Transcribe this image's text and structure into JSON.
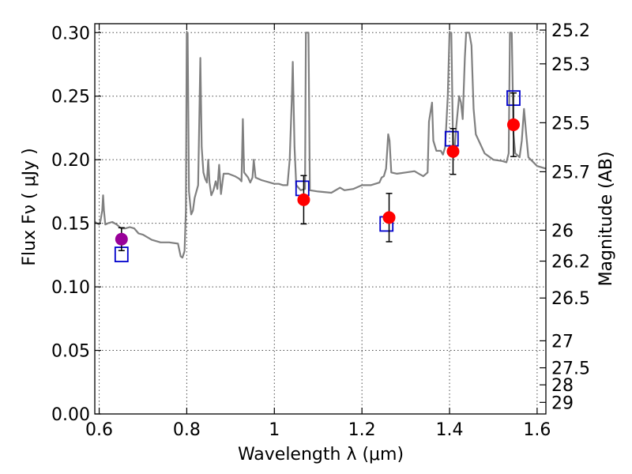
{
  "chart_data": {
    "type": "line",
    "title": "",
    "xlabel": "Wavelength  λ (μm)",
    "ylabel": "Flux  Fν  ( μJy )",
    "ylabel_right": "Magnitude (AB)",
    "xlim": [
      0.59,
      1.62
    ],
    "ylim": [
      0.0,
      0.307
    ],
    "grid": true,
    "x_ticks": [
      0.6,
      0.8,
      1.0,
      1.2,
      1.4,
      1.6
    ],
    "x_tick_labels": [
      "0.6",
      "0.8",
      "1",
      "1.2",
      "1.4",
      "1.6"
    ],
    "y_ticks": [
      0.0,
      0.05,
      0.1,
      0.15,
      0.2,
      0.25,
      0.3
    ],
    "y_tick_labels": [
      "0.00",
      "0.05",
      "0.10",
      "0.15",
      "0.20",
      "0.25",
      "0.30"
    ],
    "right_ticks": [
      {
        "label": "25.2",
        "mag": 25.2
      },
      {
        "label": "25.3",
        "mag": 25.3
      },
      {
        "label": "25.5",
        "mag": 25.5
      },
      {
        "label": "25.7",
        "mag": 25.7
      },
      {
        "label": "26",
        "mag": 26.0
      },
      {
        "label": "26.2",
        "mag": 26.2
      },
      {
        "label": "26.5",
        "mag": 26.5
      },
      {
        "label": "27",
        "mag": 27.0
      },
      {
        "label": "27.5",
        "mag": 27.5
      },
      {
        "label": "28",
        "mag": 28.0
      },
      {
        "label": "29",
        "mag": 29.0
      }
    ],
    "series": [
      {
        "kind": "spectrum",
        "color": "#808080",
        "points": [
          [
            0.59,
            0.151
          ],
          [
            0.6,
            0.149
          ],
          [
            0.603,
            0.152
          ],
          [
            0.607,
            0.16
          ],
          [
            0.609,
            0.172
          ],
          [
            0.611,
            0.16
          ],
          [
            0.614,
            0.149
          ],
          [
            0.62,
            0.15
          ],
          [
            0.63,
            0.151
          ],
          [
            0.64,
            0.149
          ],
          [
            0.65,
            0.146
          ],
          [
            0.66,
            0.146
          ],
          [
            0.67,
            0.147
          ],
          [
            0.68,
            0.146
          ],
          [
            0.69,
            0.142
          ],
          [
            0.7,
            0.141
          ],
          [
            0.72,
            0.137
          ],
          [
            0.74,
            0.135
          ],
          [
            0.76,
            0.135
          ],
          [
            0.78,
            0.134
          ],
          [
            0.786,
            0.124
          ],
          [
            0.79,
            0.123
          ],
          [
            0.795,
            0.128
          ],
          [
            0.798,
            0.16
          ],
          [
            0.8,
            0.3
          ],
          [
            0.802,
            0.3
          ],
          [
            0.805,
            0.175
          ],
          [
            0.81,
            0.157
          ],
          [
            0.814,
            0.16
          ],
          [
            0.818,
            0.17
          ],
          [
            0.822,
            0.175
          ],
          [
            0.826,
            0.18
          ],
          [
            0.829,
            0.24
          ],
          [
            0.831,
            0.28
          ],
          [
            0.834,
            0.21
          ],
          [
            0.838,
            0.19
          ],
          [
            0.842,
            0.185
          ],
          [
            0.846,
            0.182
          ],
          [
            0.849,
            0.2
          ],
          [
            0.852,
            0.182
          ],
          [
            0.856,
            0.172
          ],
          [
            0.861,
            0.176
          ],
          [
            0.866,
            0.183
          ],
          [
            0.87,
            0.177
          ],
          [
            0.874,
            0.196
          ],
          [
            0.878,
            0.173
          ],
          [
            0.884,
            0.189
          ],
          [
            0.895,
            0.189
          ],
          [
            0.91,
            0.187
          ],
          [
            0.92,
            0.185
          ],
          [
            0.925,
            0.183
          ],
          [
            0.928,
            0.232
          ],
          [
            0.931,
            0.19
          ],
          [
            0.94,
            0.186
          ],
          [
            0.945,
            0.182
          ],
          [
            0.95,
            0.186
          ],
          [
            0.953,
            0.2
          ],
          [
            0.957,
            0.186
          ],
          [
            0.97,
            0.184
          ],
          [
            0.98,
            0.183
          ],
          [
            0.99,
            0.182
          ],
          [
            1.0,
            0.181
          ],
          [
            1.01,
            0.181
          ],
          [
            1.02,
            0.18
          ],
          [
            1.03,
            0.18
          ],
          [
            1.035,
            0.2
          ],
          [
            1.04,
            0.25
          ],
          [
            1.042,
            0.277
          ],
          [
            1.046,
            0.21
          ],
          [
            1.05,
            0.18
          ],
          [
            1.06,
            0.176
          ],
          [
            1.07,
            0.177
          ],
          [
            1.072,
            0.3
          ],
          [
            1.078,
            0.3
          ],
          [
            1.081,
            0.176
          ],
          [
            1.1,
            0.175
          ],
          [
            1.13,
            0.174
          ],
          [
            1.15,
            0.178
          ],
          [
            1.16,
            0.176
          ],
          [
            1.18,
            0.177
          ],
          [
            1.2,
            0.18
          ],
          [
            1.22,
            0.18
          ],
          [
            1.24,
            0.182
          ],
          [
            1.245,
            0.186
          ],
          [
            1.25,
            0.187
          ],
          [
            1.255,
            0.193
          ],
          [
            1.26,
            0.22
          ],
          [
            1.263,
            0.215
          ],
          [
            1.267,
            0.19
          ],
          [
            1.28,
            0.189
          ],
          [
            1.3,
            0.19
          ],
          [
            1.32,
            0.191
          ],
          [
            1.33,
            0.189
          ],
          [
            1.34,
            0.187
          ],
          [
            1.35,
            0.19
          ],
          [
            1.353,
            0.23
          ],
          [
            1.36,
            0.245
          ],
          [
            1.363,
            0.215
          ],
          [
            1.37,
            0.207
          ],
          [
            1.38,
            0.207
          ],
          [
            1.385,
            0.204
          ],
          [
            1.39,
            0.21
          ],
          [
            1.396,
            0.25
          ],
          [
            1.4,
            0.3
          ],
          [
            1.404,
            0.3
          ],
          [
            1.408,
            0.21
          ],
          [
            1.41,
            0.202
          ],
          [
            1.415,
            0.225
          ],
          [
            1.422,
            0.25
          ],
          [
            1.426,
            0.245
          ],
          [
            1.43,
            0.232
          ],
          [
            1.435,
            0.28
          ],
          [
            1.438,
            0.3
          ],
          [
            1.445,
            0.3
          ],
          [
            1.45,
            0.29
          ],
          [
            1.455,
            0.24
          ],
          [
            1.46,
            0.22
          ],
          [
            1.48,
            0.205
          ],
          [
            1.5,
            0.2
          ],
          [
            1.52,
            0.199
          ],
          [
            1.53,
            0.198
          ],
          [
            1.535,
            0.205
          ],
          [
            1.538,
            0.3
          ],
          [
            1.542,
            0.3
          ],
          [
            1.546,
            0.22
          ],
          [
            1.55,
            0.205
          ],
          [
            1.56,
            0.202
          ],
          [
            1.565,
            0.215
          ],
          [
            1.57,
            0.24
          ],
          [
            1.575,
            0.22
          ],
          [
            1.58,
            0.202
          ],
          [
            1.6,
            0.195
          ],
          [
            1.62,
            0.193
          ]
        ]
      },
      {
        "kind": "observed",
        "points": [
          {
            "x": 0.651,
            "y": 0.1375,
            "err": 0.009,
            "color": "#990099"
          },
          {
            "x": 1.067,
            "y": 0.1685,
            "err": 0.019,
            "color": "#ff0000"
          },
          {
            "x": 1.262,
            "y": 0.1545,
            "err": 0.019,
            "color": "#ff0000"
          },
          {
            "x": 1.408,
            "y": 0.2065,
            "err": 0.018,
            "color": "#ff0000"
          },
          {
            "x": 1.546,
            "y": 0.2275,
            "err": 0.025,
            "color": "#ff0000"
          }
        ]
      },
      {
        "kind": "model-photometry",
        "color": "#0000cc",
        "points": [
          {
            "x": 0.651,
            "y": 0.1255
          },
          {
            "x": 1.064,
            "y": 0.1775
          },
          {
            "x": 1.256,
            "y": 0.1495
          },
          {
            "x": 1.405,
            "y": 0.2165
          },
          {
            "x": 1.546,
            "y": 0.2485
          }
        ]
      }
    ]
  }
}
